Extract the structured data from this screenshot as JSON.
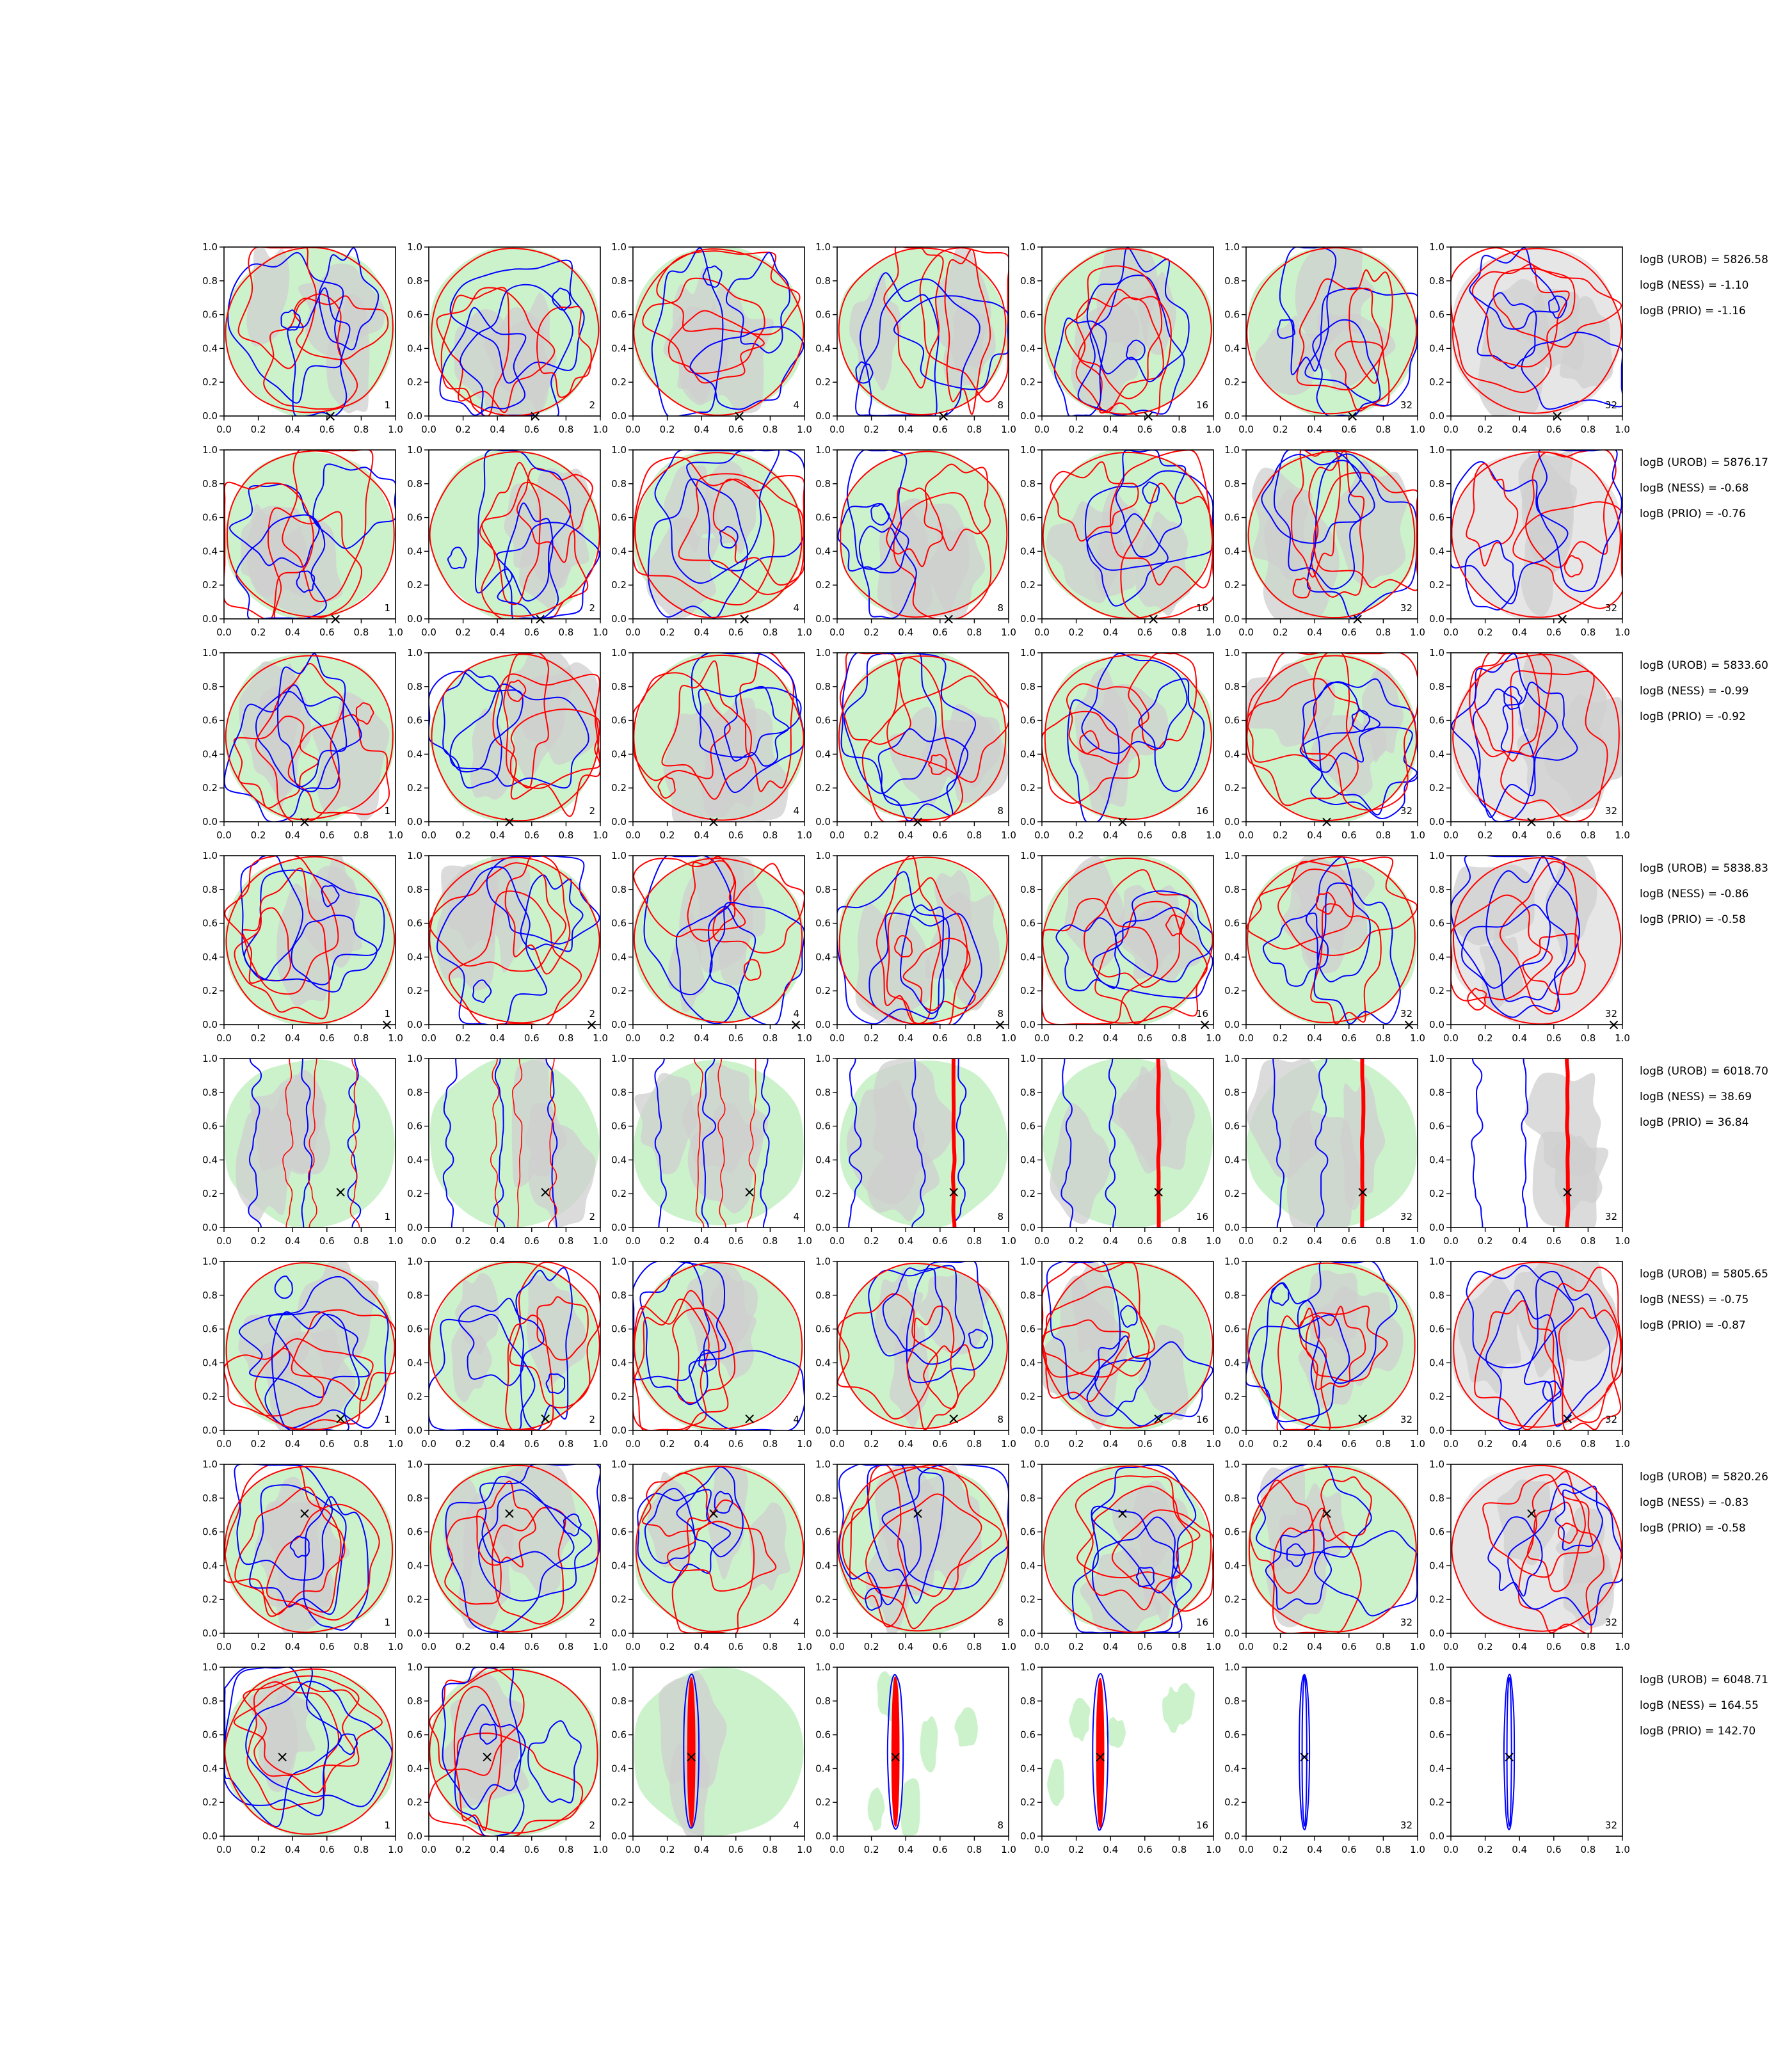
{
  "figure": {
    "background": "#ffffff",
    "colors": {
      "red_contour": "#ff0000",
      "blue_contour": "#0000ff",
      "green_fill": "#ccf2cc",
      "grey_fill": "#cfcfcf",
      "light_grey_fill": "#e6e6e6",
      "marker": "#000000",
      "axis": "#000000"
    },
    "marker_symbol": "×"
  },
  "chart_data": {
    "type": "grid of 2D density contour panels",
    "rows": 8,
    "cols": 7,
    "xlim": [
      0.0,
      1.0
    ],
    "ylim": [
      0.0,
      1.0
    ],
    "x_ticks": [
      "0.0",
      "0.2",
      "0.4",
      "0.6",
      "0.8",
      "1.0"
    ],
    "y_ticks": [
      "0.0",
      "0.2",
      "0.4",
      "0.6",
      "0.8",
      "1.0"
    ],
    "column_labels": [
      "1",
      "2",
      "4",
      "8",
      "16",
      "32",
      "32"
    ],
    "column_background": [
      "green",
      "green",
      "green",
      "green",
      "green",
      "green",
      "grey"
    ],
    "rows_data": [
      {
        "annotations": [
          "logB (UROB) = 5826.58",
          "logB (NESS) = -1.10",
          "logB (PRIO) = -1.16"
        ],
        "marker": [
          0.62,
          0.0
        ],
        "variant": "diffuse",
        "seed": 11
      },
      {
        "annotations": [
          "logB (UROB) = 5876.17",
          "logB (NESS) = -0.68",
          "logB (PRIO) = -0.76"
        ],
        "marker": [
          0.65,
          0.0
        ],
        "variant": "diffuse",
        "seed": 23
      },
      {
        "annotations": [
          "logB (UROB) = 5833.60",
          "logB (NESS) = -0.99",
          "logB (PRIO) = -0.92"
        ],
        "marker": [
          0.47,
          0.0
        ],
        "variant": "diffuse",
        "seed": 37
      },
      {
        "annotations": [
          "logB (UROB) = 5838.83",
          "logB (NESS) = -0.86",
          "logB (PRIO) = -0.58"
        ],
        "marker": [
          0.95,
          0.0
        ],
        "variant": "diffuse",
        "seed": 41
      },
      {
        "annotations": [
          "logB (UROB) = 6018.70",
          "logB (NESS) = 38.69",
          "logB (PRIO) = 36.84"
        ],
        "marker": [
          0.68,
          0.21
        ],
        "variant": "vertical",
        "focus_x": 0.68,
        "seed": 53
      },
      {
        "annotations": [
          "logB (UROB) = 5805.65",
          "logB (NESS) = -0.75",
          "logB (PRIO) = -0.87"
        ],
        "marker": [
          0.68,
          0.07
        ],
        "variant": "diffuse",
        "seed": 67
      },
      {
        "annotations": [
          "logB (UROB) = 5820.26",
          "logB (NESS) = -0.83",
          "logB (PRIO) = -0.58"
        ],
        "marker": [
          0.47,
          0.71
        ],
        "variant": "diffuse",
        "seed": 79
      },
      {
        "annotations": [
          "logB (UROB) = 6048.71",
          "logB (NESS) = 164.55",
          "logB (PRIO) = 142.70"
        ],
        "marker": [
          0.34,
          0.47
        ],
        "variant": "narrow",
        "focus_x": 0.34,
        "seed": 97
      }
    ]
  }
}
